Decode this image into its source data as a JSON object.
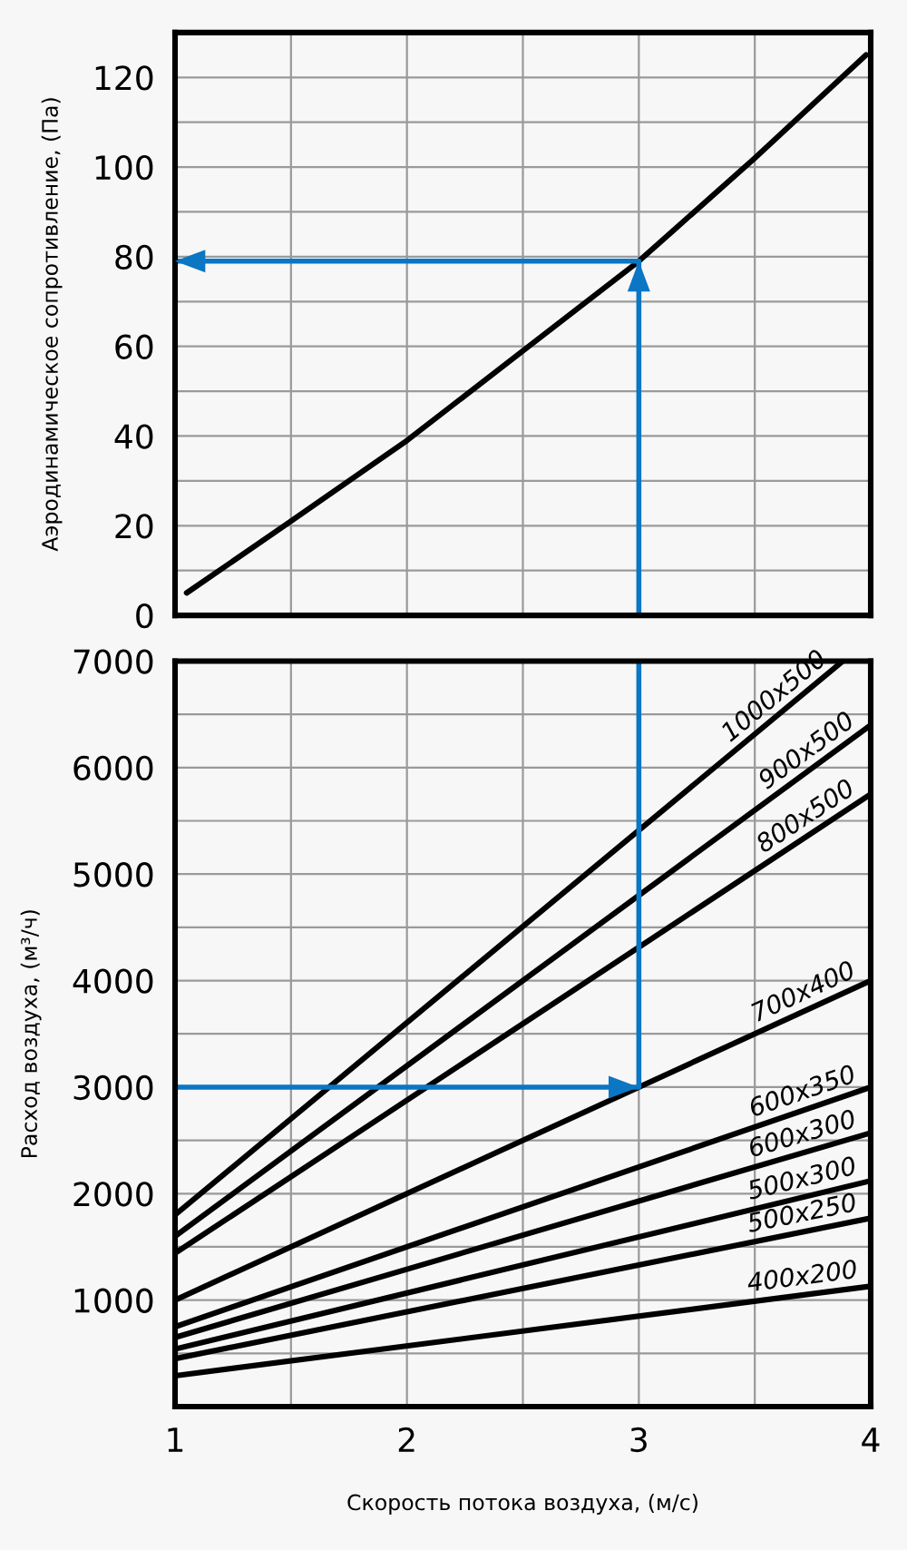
{
  "chart_data": [
    {
      "type": "line",
      "ylabel": "Аэродинамическое сопротивление, (Па)",
      "xlim": [
        1,
        4
      ],
      "ylim": [
        0,
        130
      ],
      "xticks": [
        {
          "value": 1,
          "label": null
        },
        {
          "value": 1.5,
          "label": null
        },
        {
          "value": 2,
          "label": null
        },
        {
          "value": 2.5,
          "label": null
        },
        {
          "value": 3,
          "label": null
        },
        {
          "value": 3.5,
          "label": null
        },
        {
          "value": 4,
          "label": null
        }
      ],
      "yticks": [
        0,
        {
          "value": 10,
          "label": null
        },
        20,
        {
          "value": 30,
          "label": null
        },
        40,
        {
          "value": 50,
          "label": null
        },
        60,
        {
          "value": 70,
          "label": null
        },
        80,
        {
          "value": 90,
          "label": null
        },
        100,
        {
          "value": 110,
          "label": null
        },
        120,
        {
          "value": 130,
          "label": null
        }
      ],
      "tick_labels": "y",
      "grid": true,
      "legend": false,
      "series": [
        {
          "color": "#000000",
          "x": [
            1.05,
            1.5,
            2,
            2.5,
            3,
            3.5,
            3.98
          ],
          "values": [
            5,
            21,
            39,
            59,
            79,
            102,
            125
          ]
        },
        {
          "color": "#0a76c4",
          "x": [
            3,
            3,
            1
          ],
          "values": [
            0,
            79,
            79
          ]
        }
      ]
    },
    {
      "type": "line",
      "xlabel": "Скорость потока воздуха, (м/с)",
      "ylabel": "Расход воздуха, (м³/ч)",
      "xlim": [
        1,
        4
      ],
      "ylim": [
        0,
        7000
      ],
      "xticks": [
        1,
        {
          "value": 1.5,
          "label": null
        },
        2,
        {
          "value": 2.5,
          "label": null
        },
        3,
        {
          "value": 3.5,
          "label": null
        },
        4
      ],
      "yticks": [
        {
          "value": 0,
          "label": null
        },
        {
          "value": 500,
          "label": null
        },
        1000,
        {
          "value": 1500,
          "label": null
        },
        2000,
        {
          "value": 2500,
          "label": null
        },
        3000,
        {
          "value": 3500,
          "label": null
        },
        4000,
        {
          "value": 4500,
          "label": null
        },
        5000,
        {
          "value": 5500,
          "label": null
        },
        6000,
        {
          "value": 6500,
          "label": null
        },
        7000
      ],
      "grid": true,
      "legend": false,
      "series": [
        {
          "name": "1000x500",
          "color": "#000000",
          "x": [
            1,
            3.88
          ],
          "values": [
            1800,
            7000
          ]
        },
        {
          "name": "900x500",
          "color": "#000000",
          "x": [
            1,
            4
          ],
          "values": [
            1600,
            6400
          ]
        },
        {
          "name": "800x500",
          "color": "#000000",
          "x": [
            1,
            4
          ],
          "values": [
            1440,
            5750
          ]
        },
        {
          "name": "700x400",
          "color": "#000000",
          "x": [
            1,
            4
          ],
          "values": [
            1000,
            4000
          ]
        },
        {
          "name": "600x350",
          "color": "#000000",
          "x": [
            1,
            4
          ],
          "values": [
            750,
            3000
          ]
        },
        {
          "name": "600x300",
          "color": "#000000",
          "x": [
            1,
            4
          ],
          "values": [
            650,
            2570
          ]
        },
        {
          "name": "500x300",
          "color": "#000000",
          "x": [
            1,
            4
          ],
          "values": [
            540,
            2120
          ]
        },
        {
          "name": "500x250",
          "color": "#000000",
          "x": [
            1,
            4
          ],
          "values": [
            450,
            1770
          ]
        },
        {
          "name": "400x200",
          "color": "#000000",
          "x": [
            1,
            4
          ],
          "values": [
            290,
            1130
          ]
        },
        {
          "color": "#0a76c4",
          "x": [
            1,
            3,
            3
          ],
          "values": [
            3000,
            3000,
            7000
          ]
        }
      ]
    }
  ]
}
